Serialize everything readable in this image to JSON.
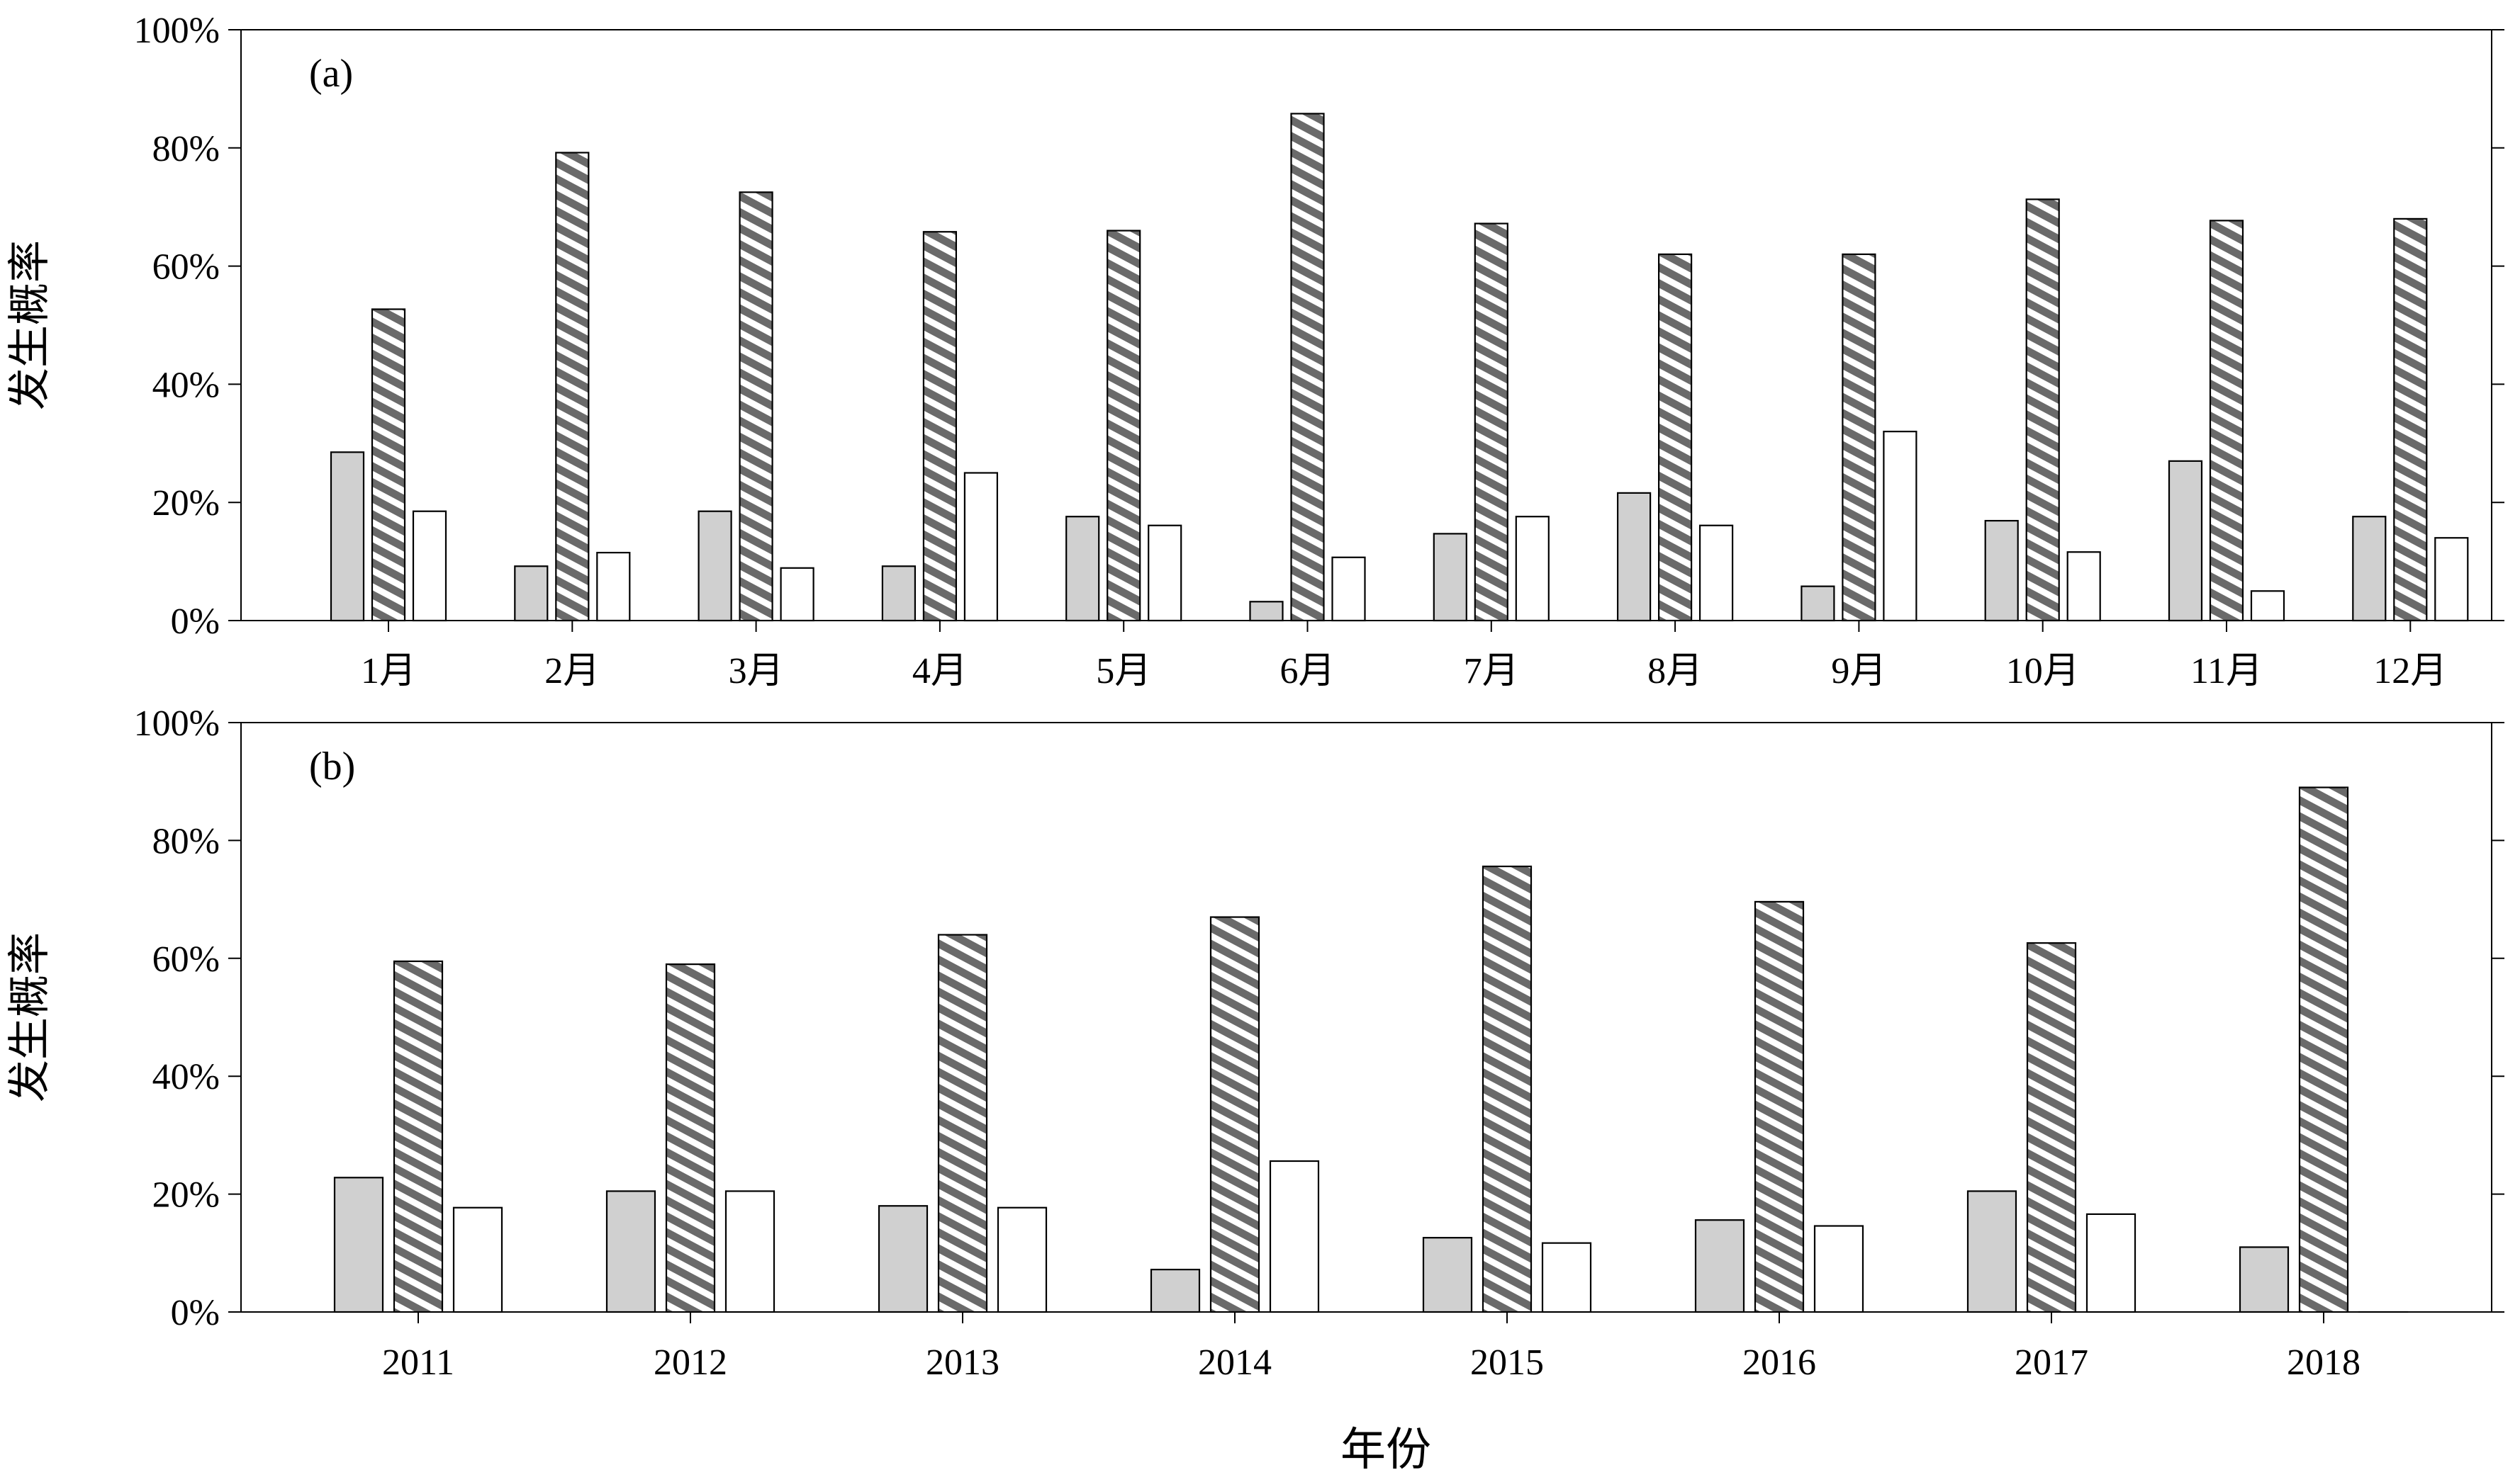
{
  "figure": {
    "xlabel": "年份"
  },
  "chart_data": [
    {
      "type": "bar",
      "panel_label": "(a)",
      "ylabel": "发生概率",
      "ylim": [
        0,
        100
      ],
      "yticks": [
        "0%",
        "20%",
        "40%",
        "60%",
        "80%",
        "100%"
      ],
      "categories": [
        "1月",
        "2月",
        "3月",
        "4月",
        "5月",
        "6月",
        "7月",
        "8月",
        "9月",
        "10月",
        "11月",
        "12月"
      ],
      "series": [
        {
          "style": "gray",
          "color": "#d0d0d0",
          "values": [
            28.5,
            9.2,
            18.5,
            9.2,
            17.6,
            3.2,
            14.7,
            21.6,
            5.8,
            16.9,
            27.0,
            17.6
          ]
        },
        {
          "style": "striped",
          "color": "#6a6a6a",
          "values": [
            52.7,
            79.2,
            72.5,
            65.8,
            66.0,
            85.8,
            67.2,
            62.0,
            62.0,
            71.3,
            67.7,
            68.0
          ]
        },
        {
          "style": "white",
          "color": "#ffffff",
          "values": [
            18.5,
            11.5,
            8.9,
            25.0,
            16.1,
            10.7,
            17.6,
            16.1,
            32.0,
            11.6,
            5.0,
            14.0
          ]
        }
      ],
      "grid": false
    },
    {
      "type": "bar",
      "panel_label": "(b)",
      "ylabel": "发生概率",
      "ylim": [
        0,
        100
      ],
      "yticks": [
        "0%",
        "20%",
        "40%",
        "60%",
        "80%",
        "100%"
      ],
      "categories": [
        "2011",
        "2012",
        "2013",
        "2014",
        "2015",
        "2016",
        "2017",
        "2018"
      ],
      "series": [
        {
          "style": "gray",
          "color": "#d0d0d0",
          "values": [
            22.8,
            20.5,
            18.0,
            7.2,
            12.6,
            15.6,
            20.5,
            11.0
          ]
        },
        {
          "style": "striped",
          "color": "#6a6a6a",
          "values": [
            59.5,
            59.0,
            64.0,
            67.0,
            75.6,
            69.6,
            62.6,
            89.0
          ]
        },
        {
          "style": "white",
          "color": "#ffffff",
          "values": [
            17.7,
            20.5,
            17.7,
            25.6,
            11.7,
            14.6,
            16.6,
            0.0
          ]
        }
      ],
      "grid": false
    }
  ]
}
